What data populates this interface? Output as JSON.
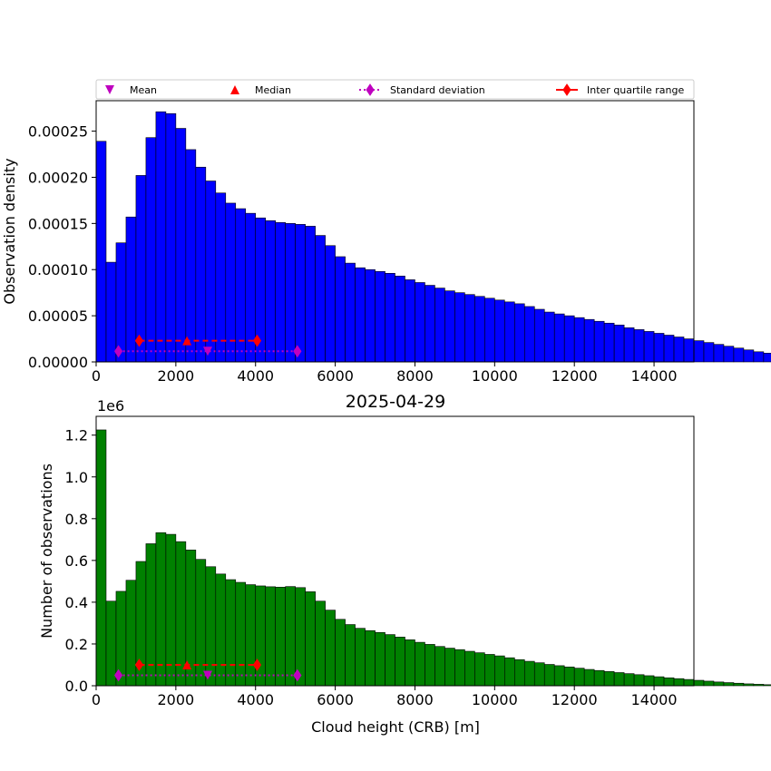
{
  "figure": {
    "title": "2025-04-29",
    "xlabel": "Cloud height (CRB) [m]"
  },
  "legend": {
    "placement": "top, above upper plot",
    "entries": [
      {
        "label": "Mean",
        "marker": "triangle-down",
        "color": "#bf00bf"
      },
      {
        "label": "Median",
        "marker": "triangle-up",
        "color": "#ff0000"
      },
      {
        "label": "Standard deviation",
        "marker": "thin-diamond",
        "linestyle": "dotted",
        "color": "#bf00bf"
      },
      {
        "label": "Inter quartile range",
        "marker": "thin-diamond",
        "linestyle": "solid",
        "color": "#ff0000"
      }
    ]
  },
  "chart_data": [
    {
      "type": "bar",
      "ylabel": "Observation density",
      "bar_color": "#0000ff",
      "bin_width": 250,
      "xlim": [
        0,
        15000
      ],
      "ylim": [
        0,
        0.000283
      ],
      "xticks": [
        0,
        2000,
        4000,
        6000,
        8000,
        10000,
        12000,
        14000
      ],
      "yticks": [
        0,
        5e-05,
        0.0001,
        0.00015,
        0.0002,
        0.00025
      ],
      "ytick_labels": [
        "0.00000",
        "0.00005",
        "0.00010",
        "0.00015",
        "0.00020",
        "0.00025"
      ],
      "values": [
        0.000239,
        0.000108,
        0.000129,
        0.000157,
        0.000202,
        0.000243,
        0.000271,
        0.000269,
        0.000253,
        0.00023,
        0.000211,
        0.000196,
        0.000183,
        0.000172,
        0.000166,
        0.000161,
        0.000156,
        0.000153,
        0.000151,
        0.00015,
        0.000149,
        0.000147,
        0.000137,
        0.000126,
        0.000114,
        0.000107,
        0.000102,
        0.0001,
        9.8e-05,
        9.6e-05,
        9.3e-05,
        8.9e-05,
        8.6e-05,
        8.3e-05,
        8e-05,
        7.7e-05,
        7.5e-05,
        7.3e-05,
        7.1e-05,
        6.9e-05,
        6.7e-05,
        6.5e-05,
        6.3e-05,
        6e-05,
        5.7e-05,
        5.4e-05,
        5.2e-05,
        5e-05,
        4.8e-05,
        4.6e-05,
        4.4e-05,
        4.2e-05,
        4e-05,
        3.7e-05,
        3.5e-05,
        3.3e-05,
        3.1e-05,
        2.9e-05,
        2.7e-05,
        2.5e-05,
        2.3e-05,
        2.1e-05,
        1.9e-05,
        1.7e-05,
        1.5e-05,
        1.3e-05,
        1.1e-05,
        9.5e-06,
        8e-06,
        6.5e-06,
        5e-06,
        3.8e-06,
        2.8e-06,
        2e-06,
        1.5e-06,
        1.1e-06,
        8e-07,
        5e-07,
        3e-07,
        2e-07,
        1e-07,
        1e-07
      ],
      "stats": {
        "mean": 2800,
        "median": 2280,
        "std_range": [
          560,
          5050
        ],
        "iqr_range": [
          1080,
          4040
        ],
        "std_y": 1.15e-05,
        "iqr_y": 2.3e-05
      }
    },
    {
      "type": "bar",
      "ylabel": "Number of observations",
      "offset_label": "1e6",
      "bar_color": "#008000",
      "bin_width": 250,
      "xlim": [
        0,
        15000
      ],
      "ylim": [
        0,
        1.29
      ],
      "xticks": [
        0,
        2000,
        4000,
        6000,
        8000,
        10000,
        12000,
        14000
      ],
      "yticks": [
        0,
        0.2,
        0.4,
        0.6,
        0.8,
        1.0,
        1.2
      ],
      "ytick_labels": [
        "0.0",
        "0.2",
        "0.4",
        "0.6",
        "0.8",
        "1.0",
        "1.2"
      ],
      "values": [
        1.225,
        0.405,
        0.452,
        0.505,
        0.595,
        0.68,
        0.733,
        0.725,
        0.69,
        0.65,
        0.605,
        0.57,
        0.535,
        0.508,
        0.495,
        0.484,
        0.478,
        0.474,
        0.472,
        0.475,
        0.47,
        0.45,
        0.405,
        0.362,
        0.318,
        0.293,
        0.275,
        0.264,
        0.255,
        0.245,
        0.233,
        0.22,
        0.208,
        0.198,
        0.188,
        0.18,
        0.173,
        0.165,
        0.158,
        0.15,
        0.143,
        0.134,
        0.125,
        0.117,
        0.11,
        0.102,
        0.096,
        0.09,
        0.084,
        0.078,
        0.073,
        0.068,
        0.063,
        0.058,
        0.053,
        0.048,
        0.043,
        0.038,
        0.034,
        0.03,
        0.026,
        0.022,
        0.018,
        0.015,
        0.012,
        0.009,
        0.007,
        0.005,
        0.004,
        0.003,
        0.002,
        0.0015,
        0.001,
        0.0008,
        0.0005,
        0.0003,
        0.0002,
        0.0001,
        0.0001,
        0.0001
      ],
      "stats": {
        "mean": 2800,
        "median": 2280,
        "std_range": [
          560,
          5050
        ],
        "iqr_range": [
          1080,
          4040
        ],
        "std_y": 0.05,
        "iqr_y": 0.1
      }
    }
  ]
}
